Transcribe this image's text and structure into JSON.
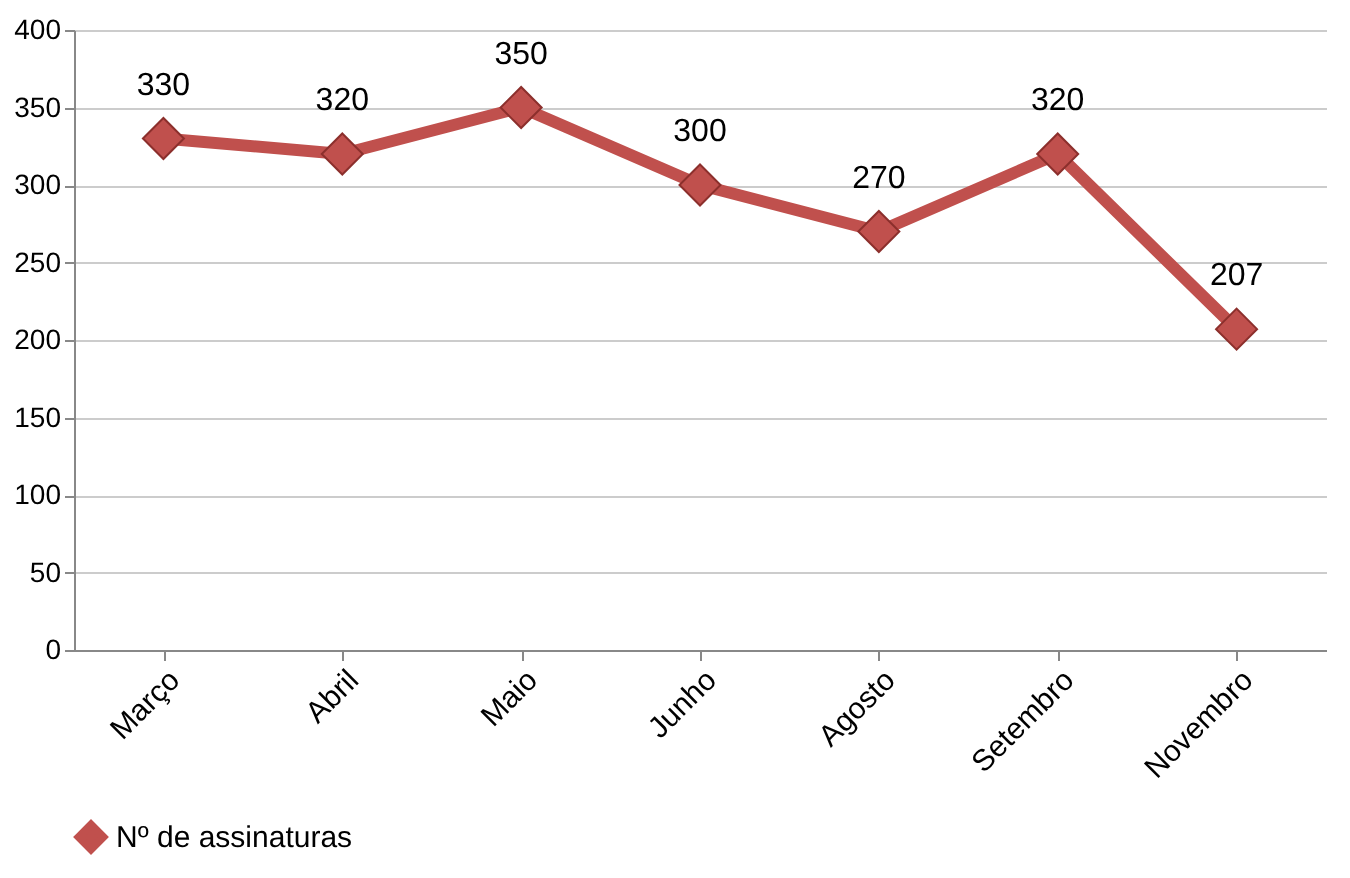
{
  "chart_data": {
    "type": "line",
    "categories": [
      "Março",
      "Abril",
      "Maio",
      "Junho",
      "Agosto",
      "Setembro",
      "Novembro"
    ],
    "series": [
      {
        "name": "Nº de assinaturas",
        "color": "#c0504d",
        "values": [
          330,
          320,
          350,
          300,
          270,
          320,
          207
        ]
      }
    ],
    "ylim": [
      0,
      400
    ],
    "yticks": [
      0,
      50,
      100,
      150,
      200,
      250,
      300,
      350,
      400
    ],
    "grid": "y",
    "legend": "bottom",
    "marker": "diamond",
    "line_style": "solid",
    "data_labels": true
  }
}
